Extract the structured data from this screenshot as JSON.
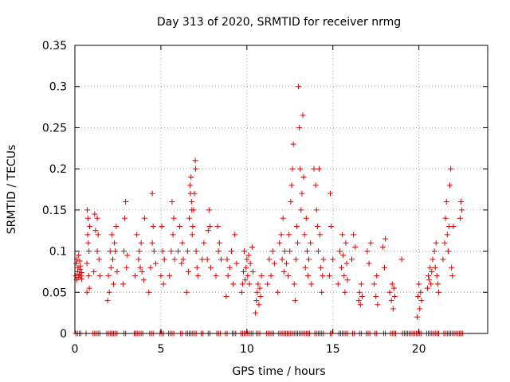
{
  "chart_data": {
    "type": "scatter",
    "title": "Day 313 of 2020, SRMTID for receiver nrmg",
    "xlabel": "GPS time / hours",
    "ylabel": "SRMTID / TECUs",
    "xlim": [
      0,
      24
    ],
    "ylim": [
      0,
      0.35
    ],
    "xticks": [
      0,
      5,
      10,
      15,
      20
    ],
    "xtick_labels": [
      "0",
      "5",
      "10",
      "15",
      "20"
    ],
    "yticks": [
      0,
      0.05,
      0.1,
      0.15,
      0.2,
      0.25,
      0.3,
      0.35
    ],
    "ytick_labels": [
      "0",
      "0.05",
      "0.1",
      "0.15",
      "0.2",
      "0.25",
      "0.3",
      "0.35"
    ],
    "grid": true,
    "marker": "plus",
    "color": "#e00000",
    "series": [
      {
        "name": "SRMTID",
        "points": [
          [
            0.05,
            0.07
          ],
          [
            0.08,
            0.085
          ],
          [
            0.1,
            0.065
          ],
          [
            0.12,
            0.09
          ],
          [
            0.15,
            0.075
          ],
          [
            0.18,
            0.08
          ],
          [
            0.2,
            0.068
          ],
          [
            0.22,
            0.095
          ],
          [
            0.25,
            0.072
          ],
          [
            0.28,
            0.088
          ],
          [
            0.3,
            0.078
          ],
          [
            0.32,
            0.082
          ],
          [
            0.35,
            0.07
          ],
          [
            0.38,
            0.074
          ],
          [
            0.4,
            0.066
          ],
          [
            0.7,
            0.05
          ],
          [
            0.7,
            0.085
          ],
          [
            0.72,
            0.15
          ],
          [
            0.74,
            0.12
          ],
          [
            0.76,
            0.14
          ],
          [
            0.78,
            0.11
          ],
          [
            0.8,
            0.07
          ],
          [
            0.82,
            0.1
          ],
          [
            0.84,
            0.055
          ],
          [
            0.86,
            0.13
          ],
          [
            1.1,
            0.075
          ],
          [
            1.15,
            0.145
          ],
          [
            1.2,
            0.125
          ],
          [
            1.3,
            0.1
          ],
          [
            1.3,
            0.14
          ],
          [
            1.35,
            0.12
          ],
          [
            1.4,
            0.09
          ],
          [
            1.45,
            0.07
          ],
          [
            1.9,
            0.04
          ],
          [
            1.95,
            0.07
          ],
          [
            2.0,
            0.05
          ],
          [
            2.05,
            0.1
          ],
          [
            2.1,
            0.08
          ],
          [
            2.15,
            0.12
          ],
          [
            2.2,
            0.09
          ],
          [
            2.25,
            0.06
          ],
          [
            2.3,
            0.11
          ],
          [
            2.35,
            0.1
          ],
          [
            2.4,
            0.13
          ],
          [
            2.45,
            0.075
          ],
          [
            2.8,
            0.06
          ],
          [
            2.85,
            0.1
          ],
          [
            2.9,
            0.14
          ],
          [
            2.95,
            0.16
          ],
          [
            3.0,
            0.08
          ],
          [
            3.05,
            0.095
          ],
          [
            3.5,
            0.07
          ],
          [
            3.6,
            0.12
          ],
          [
            3.7,
            0.09
          ],
          [
            3.75,
            0.1
          ],
          [
            3.8,
            0.08
          ],
          [
            3.85,
            0.11
          ],
          [
            3.9,
            0.075
          ],
          [
            4.0,
            0.065
          ],
          [
            4.05,
            0.14
          ],
          [
            4.3,
            0.05
          ],
          [
            4.4,
            0.08
          ],
          [
            4.5,
            0.11
          ],
          [
            4.5,
            0.17
          ],
          [
            4.55,
            0.13
          ],
          [
            4.6,
            0.1
          ],
          [
            4.7,
            0.085
          ],
          [
            5.0,
            0.07
          ],
          [
            5.05,
            0.13
          ],
          [
            5.1,
            0.1
          ],
          [
            5.15,
            0.06
          ],
          [
            5.2,
            0.09
          ],
          [
            5.5,
            0.07
          ],
          [
            5.6,
            0.1
          ],
          [
            5.65,
            0.16
          ],
          [
            5.7,
            0.12
          ],
          [
            5.75,
            0.14
          ],
          [
            5.8,
            0.09
          ],
          [
            6.0,
            0.1
          ],
          [
            6.1,
            0.13
          ],
          [
            6.2,
            0.085
          ],
          [
            6.25,
            0.11
          ],
          [
            6.3,
            0.09
          ],
          [
            6.5,
            0.05
          ],
          [
            6.55,
            0.1
          ],
          [
            6.6,
            0.075
          ],
          [
            6.65,
            0.14
          ],
          [
            6.7,
            0.18
          ],
          [
            6.72,
            0.17
          ],
          [
            6.75,
            0.19
          ],
          [
            6.78,
            0.16
          ],
          [
            6.8,
            0.15
          ],
          [
            6.82,
            0.12
          ],
          [
            6.85,
            0.13
          ],
          [
            6.9,
            0.15
          ],
          [
            6.95,
            0.17
          ],
          [
            7.0,
            0.21
          ],
          [
            7.02,
            0.2
          ],
          [
            7.05,
            0.1
          ],
          [
            7.1,
            0.08
          ],
          [
            7.15,
            0.07
          ],
          [
            7.4,
            0.09
          ],
          [
            7.5,
            0.11
          ],
          [
            7.7,
            0.09
          ],
          [
            7.75,
            0.125
          ],
          [
            7.8,
            0.15
          ],
          [
            7.85,
            0.13
          ],
          [
            7.9,
            0.08
          ],
          [
            8.2,
            0.07
          ],
          [
            8.3,
            0.13
          ],
          [
            8.35,
            0.1
          ],
          [
            8.4,
            0.11
          ],
          [
            8.5,
            0.09
          ],
          [
            8.8,
            0.045
          ],
          [
            8.85,
            0.09
          ],
          [
            8.9,
            0.07
          ],
          [
            9.0,
            0.08
          ],
          [
            9.1,
            0.1
          ],
          [
            9.2,
            0.06
          ],
          [
            9.3,
            0.12
          ],
          [
            9.4,
            0.085
          ],
          [
            9.7,
            0.05
          ],
          [
            9.75,
            0.06
          ],
          [
            9.8,
            0.075
          ],
          [
            9.85,
            0.1
          ],
          [
            9.9,
            0.065
          ],
          [
            9.95,
            0.08
          ],
          [
            10.0,
            0.09
          ],
          [
            10.05,
            0.07
          ],
          [
            10.1,
            0.095
          ],
          [
            10.15,
            0.06
          ],
          [
            10.2,
            0.085
          ],
          [
            10.3,
            0.105
          ],
          [
            10.35,
            0.075
          ],
          [
            10.5,
            0.025
          ],
          [
            10.55,
            0.04
          ],
          [
            10.6,
            0.05
          ],
          [
            10.65,
            0.06
          ],
          [
            10.7,
            0.035
          ],
          [
            10.75,
            0.055
          ],
          [
            10.8,
            0.045
          ],
          [
            10.85,
            0.07
          ],
          [
            11.2,
            0.06
          ],
          [
            11.3,
            0.09
          ],
          [
            11.4,
            0.07
          ],
          [
            11.5,
            0.1
          ],
          [
            11.6,
            0.085
          ],
          [
            11.8,
            0.05
          ],
          [
            11.9,
            0.11
          ],
          [
            12.0,
            0.12
          ],
          [
            12.05,
            0.09
          ],
          [
            12.1,
            0.14
          ],
          [
            12.15,
            0.075
          ],
          [
            12.2,
            0.1
          ],
          [
            12.3,
            0.085
          ],
          [
            12.4,
            0.07
          ],
          [
            12.45,
            0.12
          ],
          [
            12.5,
            0.1
          ],
          [
            12.55,
            0.16
          ],
          [
            12.6,
            0.18
          ],
          [
            12.65,
            0.2
          ],
          [
            12.7,
            0.23
          ],
          [
            12.75,
            0.06
          ],
          [
            12.8,
            0.04
          ],
          [
            12.85,
            0.09
          ],
          [
            12.9,
            0.13
          ],
          [
            12.95,
            0.11
          ],
          [
            13.0,
            0.3
          ],
          [
            13.05,
            0.25
          ],
          [
            13.1,
            0.2
          ],
          [
            13.15,
            0.15
          ],
          [
            13.2,
            0.17
          ],
          [
            13.25,
            0.265
          ],
          [
            13.3,
            0.19
          ],
          [
            13.35,
            0.12
          ],
          [
            13.4,
            0.08
          ],
          [
            13.45,
            0.14
          ],
          [
            13.5,
            0.1
          ],
          [
            13.55,
            0.07
          ],
          [
            13.6,
            0.09
          ],
          [
            13.7,
            0.11
          ],
          [
            13.75,
            0.06
          ],
          [
            13.9,
            0.2
          ],
          [
            14.0,
            0.18
          ],
          [
            14.05,
            0.15
          ],
          [
            14.1,
            0.13
          ],
          [
            14.15,
            0.1
          ],
          [
            14.2,
            0.2
          ],
          [
            14.25,
            0.12
          ],
          [
            14.3,
            0.08
          ],
          [
            14.35,
            0.05
          ],
          [
            14.4,
            0.07
          ],
          [
            14.45,
            0.09
          ],
          [
            14.8,
            0.07
          ],
          [
            14.85,
            0.17
          ],
          [
            14.9,
            0.13
          ],
          [
            15.0,
            0.09
          ],
          [
            15.3,
            0.06
          ],
          [
            15.4,
            0.1
          ],
          [
            15.5,
            0.08
          ],
          [
            15.55,
            0.12
          ],
          [
            15.6,
            0.095
          ],
          [
            15.65,
            0.07
          ],
          [
            15.7,
            0.05
          ],
          [
            15.75,
            0.11
          ],
          [
            15.8,
            0.085
          ],
          [
            15.85,
            0.065
          ],
          [
            16.1,
            0.09
          ],
          [
            16.2,
            0.12
          ],
          [
            16.3,
            0.105
          ],
          [
            16.5,
            0.04
          ],
          [
            16.55,
            0.05
          ],
          [
            16.6,
            0.035
          ],
          [
            16.65,
            0.06
          ],
          [
            16.7,
            0.045
          ],
          [
            17.0,
            0.1
          ],
          [
            17.1,
            0.085
          ],
          [
            17.2,
            0.11
          ],
          [
            17.4,
            0.06
          ],
          [
            17.5,
            0.045
          ],
          [
            17.55,
            0.07
          ],
          [
            17.6,
            0.035
          ],
          [
            17.9,
            0.105
          ],
          [
            18.0,
            0.08
          ],
          [
            18.05,
            0.115
          ],
          [
            18.3,
            0.05
          ],
          [
            18.4,
            0.04
          ],
          [
            18.45,
            0.06
          ],
          [
            18.5,
            0.03
          ],
          [
            18.55,
            0.055
          ],
          [
            18.6,
            0.045
          ],
          [
            19.0,
            0.09
          ],
          [
            19.9,
            0.02
          ],
          [
            19.95,
            0.045
          ],
          [
            20.0,
            0.06
          ],
          [
            20.05,
            0.03
          ],
          [
            20.1,
            0.05
          ],
          [
            20.15,
            0.04
          ],
          [
            20.5,
            0.055
          ],
          [
            20.55,
            0.07
          ],
          [
            20.6,
            0.065
          ],
          [
            20.65,
            0.08
          ],
          [
            20.7,
            0.06
          ],
          [
            20.75,
            0.075
          ],
          [
            20.8,
            0.09
          ],
          [
            20.9,
            0.1
          ],
          [
            20.95,
            0.08
          ],
          [
            21.0,
            0.11
          ],
          [
            21.05,
            0.07
          ],
          [
            21.1,
            0.06
          ],
          [
            21.15,
            0.05
          ],
          [
            21.4,
            0.09
          ],
          [
            21.5,
            0.11
          ],
          [
            21.55,
            0.14
          ],
          [
            21.6,
            0.16
          ],
          [
            21.65,
            0.12
          ],
          [
            21.7,
            0.1
          ],
          [
            21.75,
            0.13
          ],
          [
            21.8,
            0.18
          ],
          [
            21.85,
            0.2
          ],
          [
            21.9,
            0.08
          ],
          [
            21.95,
            0.07
          ],
          [
            22.0,
            0.13
          ],
          [
            22.4,
            0.14
          ],
          [
            22.45,
            0.16
          ],
          [
            22.5,
            0.15
          ]
        ]
      },
      {
        "name": "zero",
        "x": [
          0.05,
          0.15,
          0.25,
          0.35,
          0.65,
          1.05,
          1.15,
          1.25,
          1.35,
          1.45,
          1.85,
          1.95,
          2.05,
          2.15,
          2.25,
          2.35,
          2.45,
          2.85,
          2.95,
          3.45,
          3.55,
          3.65,
          3.75,
          3.85,
          3.95,
          4.35,
          4.45,
          4.55,
          4.95,
          5.05,
          5.15,
          5.45,
          5.55,
          5.65,
          5.75,
          6.15,
          6.25,
          6.45,
          6.55,
          6.65,
          6.75,
          6.85,
          6.95,
          7.05,
          7.35,
          7.45,
          7.75,
          7.85,
          8.25,
          8.35,
          8.45,
          8.75,
          8.85,
          9.15,
          9.25,
          9.35,
          9.65,
          9.75,
          9.85,
          9.95,
          10.05,
          10.15,
          10.25,
          10.35,
          10.55,
          10.65,
          10.75,
          11.15,
          11.25,
          11.35,
          11.45,
          11.55,
          11.85,
          11.95,
          12.05,
          12.15,
          12.25,
          12.35,
          12.45,
          12.55,
          12.65,
          12.75,
          12.85,
          12.95,
          13.05,
          13.15,
          13.25,
          13.35,
          13.45,
          13.55,
          13.65,
          13.95,
          14.05,
          14.15,
          14.25,
          14.35,
          14.45,
          14.85,
          14.95,
          15.35,
          15.45,
          15.55,
          15.65,
          15.75,
          15.85,
          16.15,
          16.25,
          16.55,
          16.65,
          16.95,
          17.05,
          17.15,
          17.45,
          17.55,
          17.95,
          18.05,
          18.35,
          18.45,
          18.55,
          18.65,
          19.05,
          19.15,
          19.25,
          19.35,
          19.45,
          19.55,
          19.65,
          19.75,
          19.85,
          19.95,
          20.05,
          20.15,
          20.45,
          20.55,
          20.65,
          20.75,
          20.85,
          20.95,
          21.05,
          21.15,
          21.45,
          21.55,
          21.65,
          21.75,
          21.85,
          21.95,
          22.05,
          22.15,
          22.25,
          22.35,
          22.45,
          22.55
        ],
        "y": 0
      }
    ]
  }
}
